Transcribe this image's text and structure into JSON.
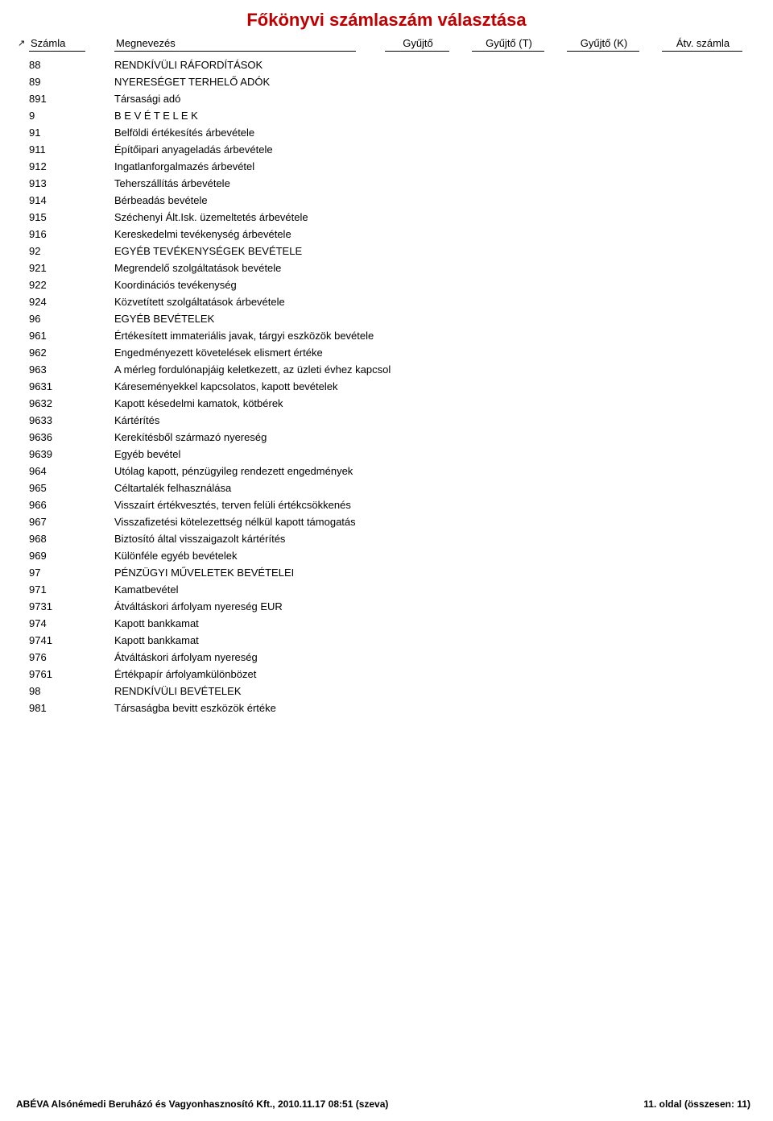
{
  "title": "Főkönyvi számlaszám választása",
  "columns": {
    "szamla": "Számla",
    "megnevezes": "Megnevezés",
    "gyujto": "Gyűjtő",
    "gyujto_t": "Gyűjtő (T)",
    "gyujto_k": "Gyűjtő (K)",
    "atv_szamla": "Átv. számla"
  },
  "sort_indicator": "↗",
  "rows": [
    {
      "code": "88",
      "name": "RENDKÍVÜLI RÁFORDÍTÁSOK"
    },
    {
      "code": "89",
      "name": "NYERESÉGET TERHELŐ ADÓK"
    },
    {
      "code": "891",
      "name": "Társasági adó"
    },
    {
      "code": "9",
      "name": "B E V É T E L E K"
    },
    {
      "code": "91",
      "name": "Belföldi értékesítés árbevétele"
    },
    {
      "code": "911",
      "name": "Építőipari anyageladás árbevétele"
    },
    {
      "code": "912",
      "name": "Ingatlanforgalmazés árbevétel"
    },
    {
      "code": "913",
      "name": "Teherszállítás árbevétele"
    },
    {
      "code": "914",
      "name": "Bérbeadás bevétele"
    },
    {
      "code": "915",
      "name": "Széchenyi Ált.Isk. üzemeltetés árbevétele"
    },
    {
      "code": "916",
      "name": "Kereskedelmi tevékenység árbevétele"
    },
    {
      "code": "92",
      "name": "EGYÉB TEVÉKENYSÉGEK BEVÉTELE"
    },
    {
      "code": "921",
      "name": "Megrendelő szolgáltatások bevétele"
    },
    {
      "code": "922",
      "name": "Koordinációs tevékenység"
    },
    {
      "code": "924",
      "name": "Közvetített szolgáltatások árbevétele"
    },
    {
      "code": "96",
      "name": "EGYÉB BEVÉTELEK"
    },
    {
      "code": "961",
      "name": "Értékesített immateriális javak, tárgyi eszközök bevétele"
    },
    {
      "code": "962",
      "name": "Engedményezett követelések elismert értéke"
    },
    {
      "code": "963",
      "name": "A mérleg fordulónapjáig keletkezett, az üzleti évhez kapcsol"
    },
    {
      "code": "9631",
      "name": "Káreseményekkel kapcsolatos, kapott bevételek"
    },
    {
      "code": "9632",
      "name": "Kapott késedelmi kamatok, kötbérek"
    },
    {
      "code": "9633",
      "name": "Kártérítés"
    },
    {
      "code": "9636",
      "name": "Kerekítésből származó nyereség"
    },
    {
      "code": "9639",
      "name": "Egyéb bevétel"
    },
    {
      "code": "964",
      "name": "Utólag kapott, pénzügyileg rendezett engedmények"
    },
    {
      "code": "965",
      "name": "Céltartalék felhasználása"
    },
    {
      "code": "966",
      "name": "Visszaírt értékvesztés, terven felüli értékcsökkenés"
    },
    {
      "code": "967",
      "name": "Visszafizetési kötelezettség nélkül kapott támogatás"
    },
    {
      "code": "968",
      "name": "Biztosító által visszaigazolt kártérítés"
    },
    {
      "code": "969",
      "name": "Különféle egyéb bevételek"
    },
    {
      "code": "97",
      "name": "PÉNZÜGYI MŰVELETEK BEVÉTELEI"
    },
    {
      "code": "971",
      "name": "Kamatbevétel"
    },
    {
      "code": "9731",
      "name": "Átváltáskori árfolyam nyereség EUR"
    },
    {
      "code": "974",
      "name": "Kapott bankkamat"
    },
    {
      "code": "9741",
      "name": "Kapott bankkamat"
    },
    {
      "code": "976",
      "name": "Átváltáskori árfolyam nyereség"
    },
    {
      "code": "9761",
      "name": "Értékpapír árfolyamkülönbözet"
    },
    {
      "code": "98",
      "name": "RENDKÍVÜLI BEVÉTELEK"
    },
    {
      "code": "981",
      "name": "Társaságba bevitt eszközök értéke"
    }
  ],
  "footer": {
    "left": "ABÉVA Alsónémedi Beruházó és Vagyonhasznosító Kft., 2010.11.17 08:51 (szeva)",
    "right": "11. oldal (összesen: 11)"
  }
}
